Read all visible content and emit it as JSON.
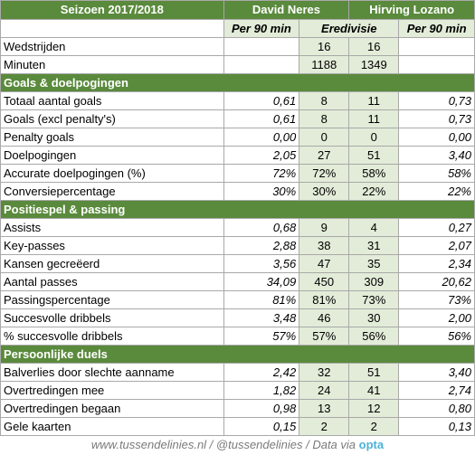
{
  "header": {
    "season": "Seizoen 2017/2018",
    "player1": "David Neres",
    "player2": "Hirving Lozano",
    "per90": "Per 90 min",
    "league": "Eredivisie"
  },
  "sections": [
    {
      "title": "",
      "rows": [
        {
          "label": "Wedstrijden",
          "p1_per90": "",
          "p1": "16",
          "p2": "16",
          "p2_per90": ""
        },
        {
          "label": "Minuten",
          "p1_per90": "",
          "p1": "1188",
          "p2": "1349",
          "p2_per90": ""
        }
      ]
    },
    {
      "title": "Goals & doelpogingen",
      "rows": [
        {
          "label": "Totaal aantal goals",
          "p1_per90": "0,61",
          "p1": "8",
          "p2": "11",
          "p2_per90": "0,73"
        },
        {
          "label": "Goals (excl penalty's)",
          "p1_per90": "0,61",
          "p1": "8",
          "p2": "11",
          "p2_per90": "0,73"
        },
        {
          "label": "Penalty goals",
          "p1_per90": "0,00",
          "p1": "0",
          "p2": "0",
          "p2_per90": "0,00"
        },
        {
          "label": "Doelpogingen",
          "p1_per90": "2,05",
          "p1": "27",
          "p2": "51",
          "p2_per90": "3,40"
        },
        {
          "label": "Accurate doelpogingen (%)",
          "p1_per90": "72%",
          "p1": "72%",
          "p2": "58%",
          "p2_per90": "58%"
        },
        {
          "label": "Conversiepercentage",
          "p1_per90": "30%",
          "p1": "30%",
          "p2": "22%",
          "p2_per90": "22%"
        }
      ]
    },
    {
      "title": "Positiespel & passing",
      "rows": [
        {
          "label": "Assists",
          "p1_per90": "0,68",
          "p1": "9",
          "p2": "4",
          "p2_per90": "0,27"
        },
        {
          "label": "Key-passes",
          "p1_per90": "2,88",
          "p1": "38",
          "p2": "31",
          "p2_per90": "2,07"
        },
        {
          "label": "Kansen gecreëerd",
          "p1_per90": "3,56",
          "p1": "47",
          "p2": "35",
          "p2_per90": "2,34"
        },
        {
          "label": "Aantal passes",
          "p1_per90": "34,09",
          "p1": "450",
          "p2": "309",
          "p2_per90": "20,62"
        },
        {
          "label": "Passingspercentage",
          "p1_per90": "81%",
          "p1": "81%",
          "p2": "73%",
          "p2_per90": "73%"
        },
        {
          "label": "Succesvolle dribbels",
          "p1_per90": "3,48",
          "p1": "46",
          "p2": "30",
          "p2_per90": "2,00"
        },
        {
          "label": "% succesvolle dribbels",
          "p1_per90": "57%",
          "p1": "57%",
          "p2": "56%",
          "p2_per90": "56%"
        }
      ]
    },
    {
      "title": "Persoonlijke duels",
      "rows": [
        {
          "label": "Balverlies door slechte aanname",
          "p1_per90": "2,42",
          "p1": "32",
          "p2": "51",
          "p2_per90": "3,40"
        },
        {
          "label": "Overtredingen mee",
          "p1_per90": "1,82",
          "p1": "24",
          "p2": "41",
          "p2_per90": "2,74"
        },
        {
          "label": "Overtredingen begaan",
          "p1_per90": "0,98",
          "p1": "13",
          "p2": "12",
          "p2_per90": "0,80"
        },
        {
          "label": "Gele kaarten",
          "p1_per90": "0,15",
          "p1": "2",
          "p2": "2",
          "p2_per90": "0,13"
        }
      ]
    }
  ],
  "footer": {
    "text": "www.tussendelinies.nl / @tussendelinies / Data via",
    "logo": "opta"
  },
  "colors": {
    "header_green": "#5a8a3c",
    "light_green": "#e2ecd8",
    "opta_blue": "#4db2d8"
  }
}
